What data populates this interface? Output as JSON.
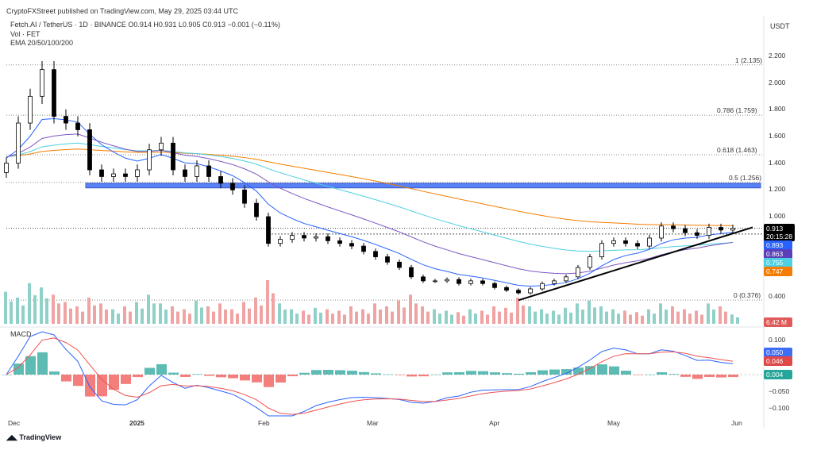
{
  "header": {
    "publisher": "CryptoFXStreet published on TradingView.com, May 29, 2025 03:44 UTC",
    "symbol_line": "Fetch.AI / TetherUS · 1D · BINANCE  O0.914  H0.931  L0.905  C0.913  −0.001 (−0.11%)",
    "vol_label": "Vol · FET",
    "ema_label": "EMA 20/50/100/200",
    "currency": "USDT"
  },
  "footer": {
    "brand": "TradingView"
  },
  "macd_label": "MACD",
  "price_tags": {
    "last": "0.913",
    "countdown": "20:15:28",
    "ema20": "0.893",
    "ema50": "0.863",
    "ema100": "0.755",
    "ema200": "0.747",
    "volume": "6.42 M",
    "macd": "0.050",
    "signal": "0.046",
    "hist": "0.004"
  },
  "colors": {
    "up": "#26a69a",
    "down": "#000000",
    "vol_up": "#8fd1c9",
    "vol_down": "#f0a3a3",
    "ema20": "#2962ff",
    "ema50": "#7e57c2",
    "ema100": "#4dd0e1",
    "ema200": "#f57c00",
    "zone": "#3d6cf5"
  },
  "chart_data": {
    "type": "candlestick",
    "title": "Fetch.AI / TetherUS 1D",
    "x_start": "2024-11-29",
    "step_days": 3,
    "closes": [
      1.4,
      1.7,
      1.9,
      2.1,
      1.75,
      1.7,
      1.65,
      1.35,
      1.3,
      1.32,
      1.3,
      1.35,
      1.5,
      1.55,
      1.35,
      1.3,
      1.38,
      1.3,
      1.25,
      1.2,
      1.1,
      1.0,
      0.8,
      0.83,
      0.86,
      0.84,
      0.85,
      0.82,
      0.8,
      0.78,
      0.74,
      0.7,
      0.66,
      0.62,
      0.55,
      0.52,
      0.52,
      0.53,
      0.5,
      0.52,
      0.5,
      0.47,
      0.45,
      0.43,
      0.46,
      0.5,
      0.52,
      0.55,
      0.62,
      0.7,
      0.8,
      0.82,
      0.8,
      0.78,
      0.84,
      0.93,
      0.91,
      0.88,
      0.86,
      0.92,
      0.9,
      0.913
    ],
    "volumes_m": [
      22,
      18,
      28,
      25,
      20,
      15,
      12,
      18,
      14,
      10,
      12,
      15,
      20,
      14,
      12,
      10,
      16,
      12,
      14,
      10,
      15,
      18,
      30,
      14,
      10,
      9,
      11,
      10,
      9,
      12,
      10,
      14,
      12,
      16,
      20,
      12,
      10,
      9,
      8,
      10,
      9,
      12,
      11,
      18,
      12,
      10,
      9,
      11,
      14,
      16,
      12,
      10,
      9,
      8,
      10,
      14,
      12,
      10,
      9,
      14,
      12,
      6.42
    ],
    "price_axis": {
      "ticks": [
        "2.200",
        "2.000",
        "1.800",
        "1.600",
        "1.400",
        "1.200",
        "1.000",
        "0.400"
      ],
      "values": [
        2.2,
        2.0,
        1.8,
        1.6,
        1.4,
        1.2,
        1.0,
        0.4
      ]
    },
    "macd_axis": {
      "ticks": [
        "0.100",
        "−0.050",
        "−0.100"
      ],
      "values": [
        0.1,
        -0.05,
        -0.1
      ]
    },
    "x_ticks": [
      "Dec",
      "2025",
      "Feb",
      "Mar",
      "Apr",
      "May",
      "Jun"
    ],
    "fib_levels": [
      {
        "label": "1 (2.135)",
        "value": 2.135
      },
      {
        "label": "0.786 (1.759)",
        "value": 1.759
      },
      {
        "label": "0.618 (1.463)",
        "value": 1.463
      },
      {
        "label": "0.5 (1.256)",
        "value": 1.256
      },
      {
        "label": "0 (0.376)",
        "value": 0.376
      }
    ],
    "support_zone": [
      1.215,
      1.25
    ],
    "trendline": [
      {
        "day": 129,
        "price": 0.375
      },
      {
        "day": 188,
        "price": 0.92
      }
    ],
    "dashed_level": 0.87
  }
}
